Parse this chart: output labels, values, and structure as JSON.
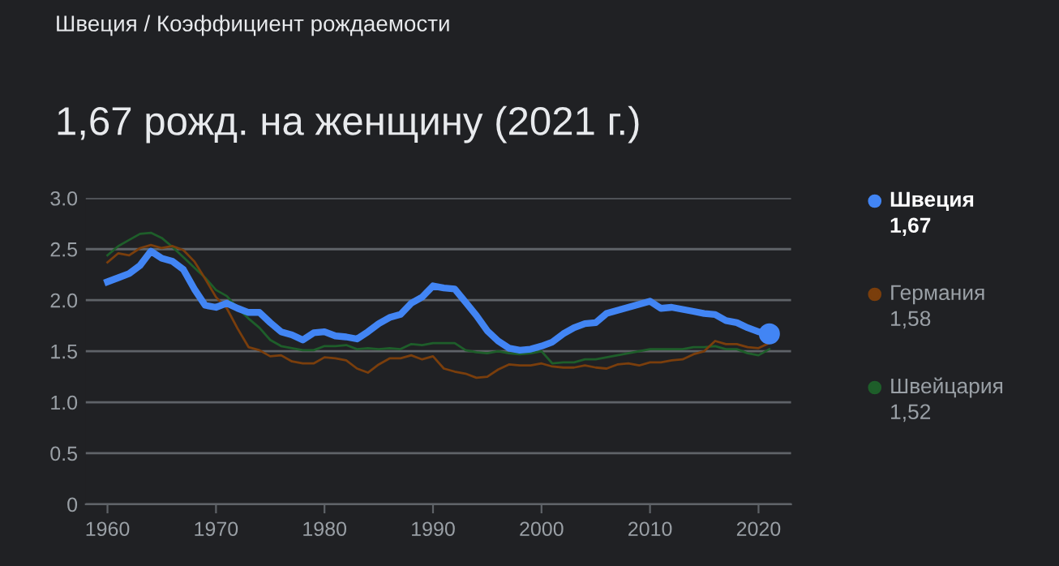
{
  "chart_data": {
    "type": "line",
    "subtitle": "Швеция / Коэффициент рождаемости",
    "title": "1,67 рожд. на женщину (2021 г.)",
    "x": [
      1960,
      1961,
      1962,
      1963,
      1964,
      1965,
      1966,
      1967,
      1968,
      1969,
      1970,
      1971,
      1972,
      1973,
      1974,
      1975,
      1976,
      1977,
      1978,
      1979,
      1980,
      1981,
      1982,
      1983,
      1984,
      1985,
      1986,
      1987,
      1988,
      1989,
      1990,
      1991,
      1992,
      1993,
      1994,
      1995,
      1996,
      1997,
      1998,
      1999,
      2000,
      2001,
      2002,
      2003,
      2004,
      2005,
      2006,
      2007,
      2008,
      2009,
      2010,
      2011,
      2012,
      2013,
      2014,
      2015,
      2016,
      2017,
      2018,
      2019,
      2020,
      2021
    ],
    "series": [
      {
        "name": "Швейцария",
        "color": "#1e5e2a",
        "values": [
          2.44,
          2.53,
          2.59,
          2.65,
          2.66,
          2.61,
          2.52,
          2.42,
          2.32,
          2.22,
          2.1,
          2.04,
          1.92,
          1.82,
          1.73,
          1.61,
          1.55,
          1.53,
          1.51,
          1.51,
          1.55,
          1.55,
          1.56,
          1.52,
          1.53,
          1.52,
          1.53,
          1.52,
          1.57,
          1.56,
          1.58,
          1.58,
          1.58,
          1.51,
          1.49,
          1.48,
          1.5,
          1.48,
          1.47,
          1.48,
          1.5,
          1.38,
          1.39,
          1.39,
          1.42,
          1.42,
          1.44,
          1.46,
          1.48,
          1.5,
          1.52,
          1.52,
          1.52,
          1.52,
          1.54,
          1.54,
          1.55,
          1.52,
          1.52,
          1.48,
          1.46,
          1.52
        ]
      },
      {
        "name": "Германия",
        "color": "#7a3e0c",
        "values": [
          2.37,
          2.46,
          2.44,
          2.51,
          2.54,
          2.51,
          2.53,
          2.49,
          2.38,
          2.21,
          2.03,
          1.92,
          1.72,
          1.54,
          1.51,
          1.45,
          1.46,
          1.4,
          1.38,
          1.38,
          1.44,
          1.43,
          1.41,
          1.33,
          1.29,
          1.37,
          1.43,
          1.43,
          1.46,
          1.42,
          1.45,
          1.33,
          1.3,
          1.28,
          1.24,
          1.25,
          1.32,
          1.37,
          1.36,
          1.36,
          1.38,
          1.35,
          1.34,
          1.34,
          1.36,
          1.34,
          1.33,
          1.37,
          1.38,
          1.36,
          1.39,
          1.39,
          1.41,
          1.42,
          1.47,
          1.5,
          1.6,
          1.57,
          1.57,
          1.54,
          1.53,
          1.58
        ]
      },
      {
        "name": "Швеция",
        "color": "#4285f4",
        "values": [
          2.18,
          2.22,
          2.26,
          2.34,
          2.48,
          2.41,
          2.38,
          2.3,
          2.11,
          1.95,
          1.93,
          1.97,
          1.92,
          1.88,
          1.88,
          1.78,
          1.69,
          1.66,
          1.61,
          1.68,
          1.69,
          1.65,
          1.64,
          1.62,
          1.69,
          1.77,
          1.83,
          1.86,
          1.97,
          2.03,
          2.14,
          2.12,
          2.11,
          1.98,
          1.85,
          1.7,
          1.6,
          1.53,
          1.51,
          1.52,
          1.55,
          1.59,
          1.67,
          1.73,
          1.77,
          1.78,
          1.87,
          1.9,
          1.93,
          1.96,
          1.99,
          1.92,
          1.93,
          1.91,
          1.89,
          1.87,
          1.86,
          1.8,
          1.78,
          1.73,
          1.69,
          1.67
        ]
      },
      {
        "type": "scatter",
        "marker": "circle",
        "color": "#4285f4",
        "x": [
          2021
        ],
        "values": [
          1.67
        ]
      }
    ],
    "annotations": [
      "1,52",
      "1,58",
      "1,67"
    ],
    "xlim": [
      1958,
      2023
    ],
    "xticks": [
      1960,
      1970,
      1980,
      1990,
      2000,
      2010,
      2020
    ],
    "ylim": [
      0,
      3
    ],
    "yticks": [
      0,
      0.5,
      {
        "value": 1,
        "label": "1.0"
      },
      1.5,
      {
        "value": 2,
        "label": "2.0"
      },
      2.5,
      {
        "value": 3,
        "label": "3.0"
      }
    ],
    "grid": "y",
    "legend": "right",
    "marker": "none"
  }
}
